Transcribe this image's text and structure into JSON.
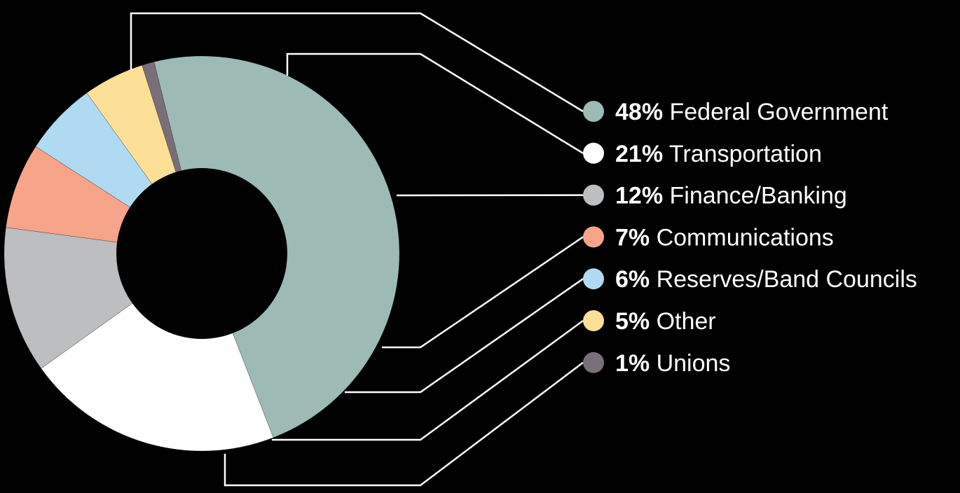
{
  "chart_data": {
    "type": "pie",
    "title": "",
    "legend_position": "right",
    "slices": [
      {
        "label": "Federal Government",
        "percent_label": "48%",
        "value": 48,
        "color": "#9dbab5"
      },
      {
        "label": "Transportation",
        "percent_label": "21%",
        "value": 21,
        "color": "#ffffff"
      },
      {
        "label": "Finance/Banking",
        "percent_label": "12%",
        "value": 12,
        "color": "#bcbec0"
      },
      {
        "label": "Communications",
        "percent_label": "7%",
        "value": 7,
        "color": "#f6a48a"
      },
      {
        "label": "Reserves/Band Councils",
        "percent_label": "6%",
        "value": 6,
        "color": "#b0daf2"
      },
      {
        "label": "Other",
        "percent_label": "5%",
        "value": 5,
        "color": "#fde098"
      },
      {
        "label": "Unions",
        "percent_label": "1%",
        "value": 1,
        "color": "#7a6f78"
      }
    ]
  }
}
